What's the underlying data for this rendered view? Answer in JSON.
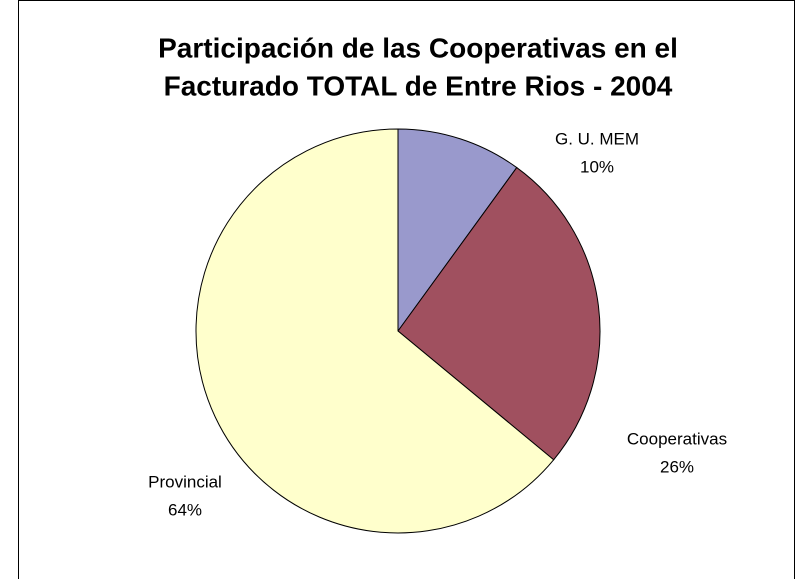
{
  "chart_data": {
    "type": "pie",
    "title": [
      "Participación de las Cooperativas en el",
      "Facturado TOTAL de Entre Rios - 2004"
    ],
    "categories": [
      "G. U. MEM",
      "Cooperativas",
      "Provincial"
    ],
    "values": [
      10,
      26,
      64
    ],
    "value_labels": [
      "10%",
      "26%",
      "64%"
    ],
    "colors": [
      "#9999cc",
      "#a0505f",
      "#ffffcc"
    ]
  }
}
